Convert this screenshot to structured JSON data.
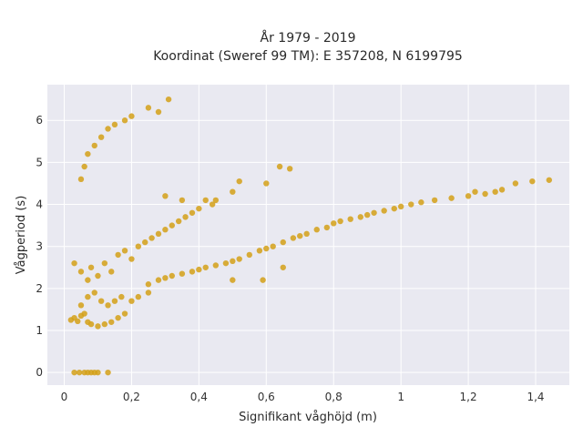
{
  "chart_data": {
    "type": "scatter",
    "title_line1": "År 1979 - 2019",
    "title_line2": "Koordinat (Sweref 99 TM): E 357208, N 6199795",
    "xlabel": "Signifikant våghöjd (m)",
    "ylabel": "Vågperiod (s)",
    "xlim": [
      -0.05,
      1.5
    ],
    "ylim": [
      -0.3,
      6.85
    ],
    "x_ticks": [
      0,
      0.2,
      0.4,
      0.6,
      0.8,
      1,
      1.2,
      1.4
    ],
    "x_tick_labels": [
      "0",
      "0,2",
      "0,4",
      "0,6",
      "0,8",
      "1",
      "1,2",
      "1,4"
    ],
    "y_ticks": [
      0,
      1,
      2,
      3,
      4,
      5,
      6
    ],
    "y_tick_labels": [
      "0",
      "1",
      "2",
      "3",
      "4",
      "5",
      "6"
    ],
    "grid": true,
    "colors": {
      "marker": "#d4a017",
      "plot_background": "#e9e9f1",
      "grid": "#ffffff"
    },
    "points": [
      [
        0.03,
        0.0
      ],
      [
        0.045,
        0.0
      ],
      [
        0.06,
        0.0
      ],
      [
        0.07,
        0.0
      ],
      [
        0.08,
        0.0
      ],
      [
        0.09,
        0.0
      ],
      [
        0.1,
        0.0
      ],
      [
        0.13,
        0.0
      ],
      [
        0.02,
        1.25
      ],
      [
        0.03,
        1.3
      ],
      [
        0.04,
        1.22
      ],
      [
        0.05,
        1.35
      ],
      [
        0.06,
        1.4
      ],
      [
        0.07,
        1.2
      ],
      [
        0.08,
        1.15
      ],
      [
        0.1,
        1.1
      ],
      [
        0.12,
        1.15
      ],
      [
        0.14,
        1.2
      ],
      [
        0.16,
        1.3
      ],
      [
        0.18,
        1.4
      ],
      [
        0.05,
        1.6
      ],
      [
        0.07,
        1.8
      ],
      [
        0.09,
        1.9
      ],
      [
        0.11,
        1.7
      ],
      [
        0.13,
        1.6
      ],
      [
        0.15,
        1.7
      ],
      [
        0.17,
        1.8
      ],
      [
        0.2,
        1.7
      ],
      [
        0.22,
        1.8
      ],
      [
        0.25,
        1.9
      ],
      [
        0.03,
        2.6
      ],
      [
        0.05,
        2.4
      ],
      [
        0.07,
        2.2
      ],
      [
        0.08,
        2.5
      ],
      [
        0.1,
        2.3
      ],
      [
        0.12,
        2.6
      ],
      [
        0.14,
        2.4
      ],
      [
        0.16,
        2.8
      ],
      [
        0.18,
        2.9
      ],
      [
        0.2,
        2.7
      ],
      [
        0.22,
        3.0
      ],
      [
        0.24,
        3.1
      ],
      [
        0.26,
        3.2
      ],
      [
        0.28,
        3.3
      ],
      [
        0.3,
        3.4
      ],
      [
        0.32,
        3.5
      ],
      [
        0.34,
        3.6
      ],
      [
        0.36,
        3.7
      ],
      [
        0.38,
        3.8
      ],
      [
        0.4,
        3.9
      ],
      [
        0.42,
        4.1
      ],
      [
        0.44,
        4.0
      ],
      [
        0.25,
        2.1
      ],
      [
        0.28,
        2.2
      ],
      [
        0.3,
        2.25
      ],
      [
        0.32,
        2.3
      ],
      [
        0.35,
        2.35
      ],
      [
        0.38,
        2.4
      ],
      [
        0.4,
        2.45
      ],
      [
        0.42,
        2.5
      ],
      [
        0.45,
        2.55
      ],
      [
        0.48,
        2.6
      ],
      [
        0.5,
        2.65
      ],
      [
        0.52,
        2.7
      ],
      [
        0.55,
        2.8
      ],
      [
        0.58,
        2.9
      ],
      [
        0.6,
        2.95
      ],
      [
        0.62,
        3.0
      ],
      [
        0.65,
        3.1
      ],
      [
        0.68,
        3.2
      ],
      [
        0.7,
        3.25
      ],
      [
        0.72,
        3.3
      ],
      [
        0.75,
        3.4
      ],
      [
        0.78,
        3.45
      ],
      [
        0.8,
        3.55
      ],
      [
        0.82,
        3.6
      ],
      [
        0.85,
        3.65
      ],
      [
        0.88,
        3.7
      ],
      [
        0.9,
        3.75
      ],
      [
        0.92,
        3.8
      ],
      [
        0.95,
        3.85
      ],
      [
        0.98,
        3.9
      ],
      [
        1.0,
        3.95
      ],
      [
        1.03,
        4.0
      ],
      [
        1.06,
        4.05
      ],
      [
        1.1,
        4.1
      ],
      [
        1.15,
        4.15
      ],
      [
        1.2,
        4.2
      ],
      [
        1.22,
        4.3
      ],
      [
        1.25,
        4.25
      ],
      [
        1.28,
        4.3
      ],
      [
        1.3,
        4.35
      ],
      [
        1.34,
        4.5
      ],
      [
        1.39,
        4.55
      ],
      [
        1.44,
        4.58
      ],
      [
        0.31,
        6.5
      ],
      [
        0.28,
        6.2
      ],
      [
        0.25,
        6.3
      ],
      [
        0.2,
        6.1
      ],
      [
        0.18,
        6.0
      ],
      [
        0.15,
        5.9
      ],
      [
        0.13,
        5.8
      ],
      [
        0.11,
        5.6
      ],
      [
        0.09,
        5.4
      ],
      [
        0.07,
        5.2
      ],
      [
        0.06,
        4.9
      ],
      [
        0.05,
        4.6
      ],
      [
        0.52,
        4.55
      ],
      [
        0.6,
        4.5
      ],
      [
        0.64,
        4.9
      ],
      [
        0.67,
        4.85
      ],
      [
        0.3,
        4.2
      ],
      [
        0.35,
        4.1
      ],
      [
        0.45,
        4.1
      ],
      [
        0.5,
        4.3
      ],
      [
        0.59,
        2.2
      ],
      [
        0.5,
        2.2
      ],
      [
        0.65,
        2.5
      ]
    ]
  }
}
